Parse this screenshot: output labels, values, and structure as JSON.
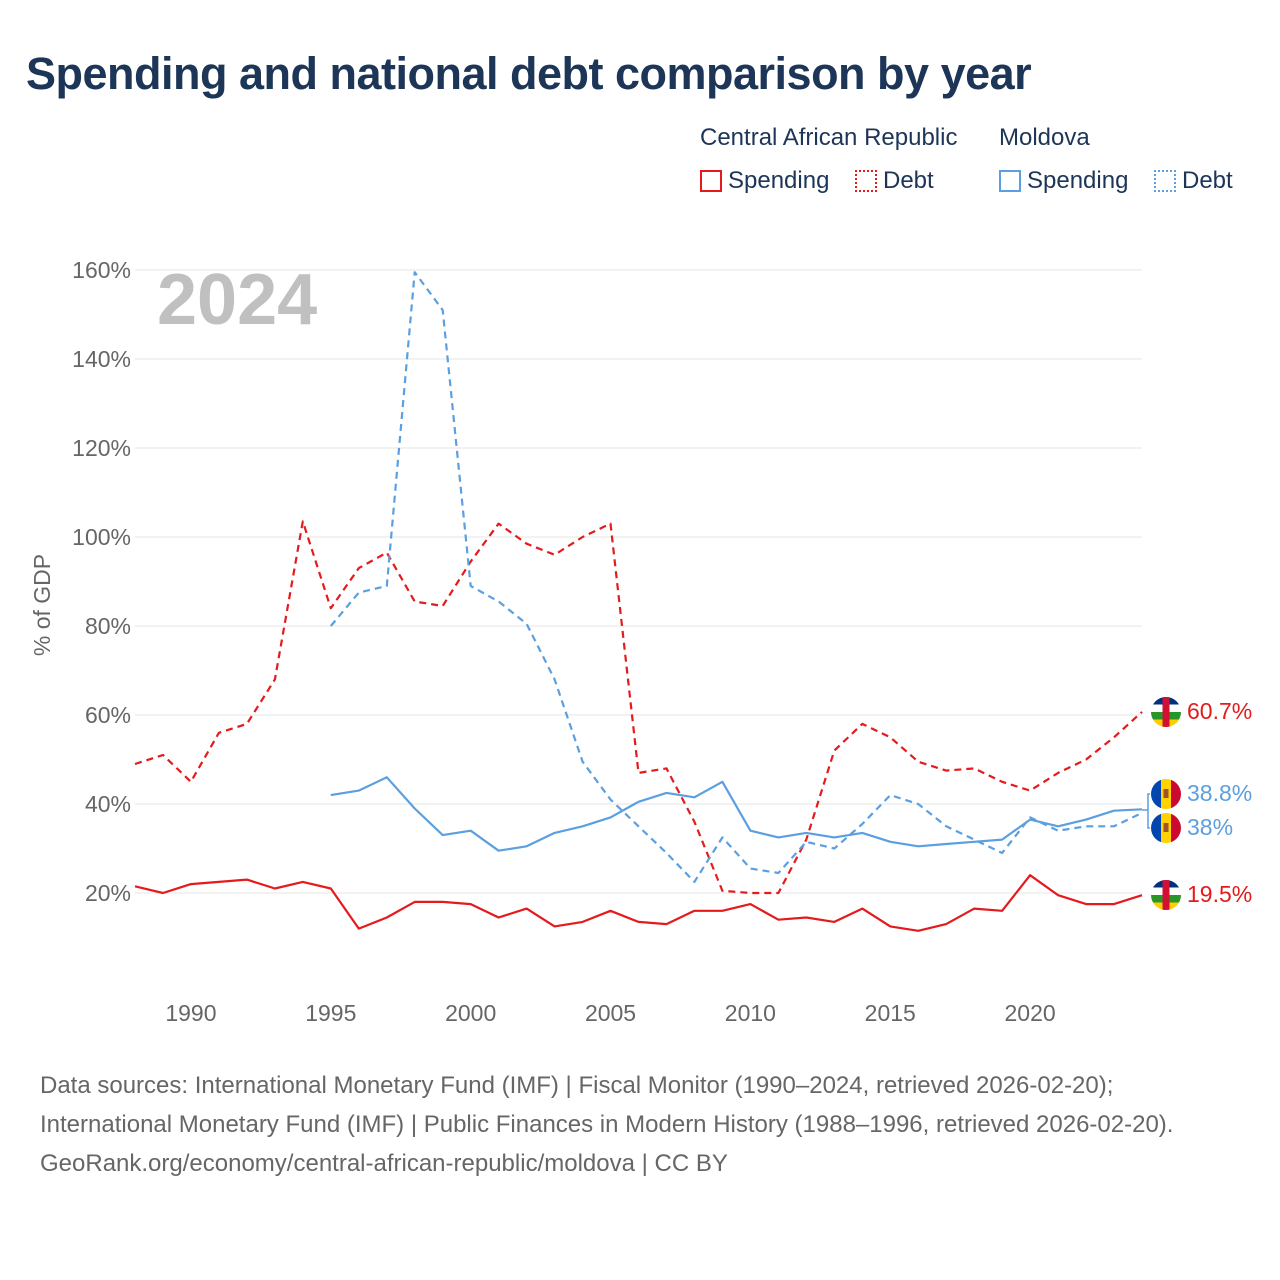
{
  "title": "Spending and national debt comparison by year",
  "legend": {
    "groups": [
      {
        "country": "Central African Republic",
        "color": "#e41a1c",
        "items": [
          "Spending",
          "Debt"
        ]
      },
      {
        "country": "Moldova",
        "color": "#5b9fe0",
        "items": [
          "Spending",
          "Debt"
        ]
      }
    ]
  },
  "footer": {
    "sources": "Data sources: International Monetary Fund (IMF) | Fiscal Monitor (1990–2024, retrieved 2026-02-20); International Monetary Fund (IMF) | Public Finances in Modern History (1988–1996, retrieved 2026-02-20).",
    "credit": "GeoRank.org/economy/central-african-republic/moldova | CC BY"
  },
  "chart_data": {
    "type": "line",
    "title": "Spending and national debt comparison by year",
    "ylabel": "% of GDP",
    "xlabel": "",
    "year_label": "2024",
    "xlim": [
      1988,
      2024
    ],
    "ylim": [
      0,
      160
    ],
    "x_ticks": [
      1990,
      1995,
      2000,
      2005,
      2010,
      2015,
      2020
    ],
    "y_ticks": [
      20,
      40,
      60,
      80,
      100,
      120,
      140,
      160
    ],
    "y_tick_labels": [
      "20%",
      "40%",
      "60%",
      "80%",
      "100%",
      "120%",
      "140%",
      "160%"
    ],
    "grid": true,
    "series": [
      {
        "name": "Central African Republic Debt",
        "country": "Central African Republic",
        "metric": "Debt",
        "color": "#e41a1c",
        "dashed": true,
        "end_label": "60.7%",
        "x": [
          1988,
          1989,
          1990,
          1991,
          1992,
          1993,
          1994,
          1995,
          1996,
          1997,
          1998,
          1999,
          2000,
          2001,
          2002,
          2003,
          2004,
          2005,
          2006,
          2007,
          2008,
          2009,
          2010,
          2011,
          2012,
          2013,
          2014,
          2015,
          2016,
          2017,
          2018,
          2019,
          2020,
          2021,
          2022,
          2023,
          2024
        ],
        "values": [
          49,
          51,
          45,
          56,
          58,
          68,
          103.5,
          84,
          93,
          96.5,
          85.5,
          84.5,
          94.5,
          103,
          98.5,
          96,
          100,
          103,
          47,
          48,
          36,
          20.5,
          20,
          20,
          32,
          52,
          58,
          55,
          49.5,
          47.5,
          48,
          45,
          43,
          47,
          50,
          55,
          60.7
        ]
      },
      {
        "name": "Central African Republic Spending",
        "country": "Central African Republic",
        "metric": "Spending",
        "color": "#e41a1c",
        "dashed": false,
        "end_label": "19.5%",
        "x": [
          1988,
          1989,
          1990,
          1991,
          1992,
          1993,
          1994,
          1995,
          1996,
          1997,
          1998,
          1999,
          2000,
          2001,
          2002,
          2003,
          2004,
          2005,
          2006,
          2007,
          2008,
          2009,
          2010,
          2011,
          2012,
          2013,
          2014,
          2015,
          2016,
          2017,
          2018,
          2019,
          2020,
          2021,
          2022,
          2023,
          2024
        ],
        "values": [
          21.5,
          20,
          22,
          22.5,
          23,
          21,
          22.5,
          21,
          12,
          14.5,
          18,
          18,
          17.5,
          14.5,
          16.5,
          12.5,
          13.5,
          16,
          13.5,
          13,
          16,
          16,
          17.5,
          14,
          14.5,
          13.5,
          16.5,
          12.5,
          11.5,
          13,
          16.5,
          16,
          24,
          19.5,
          17.5,
          17.5,
          19.5
        ]
      },
      {
        "name": "Moldova Debt",
        "country": "Moldova",
        "metric": "Debt",
        "color": "#5b9fe0",
        "dashed": true,
        "end_label": "38%",
        "x": [
          1995,
          1996,
          1997,
          1998,
          1999,
          2000,
          2001,
          2002,
          2003,
          2004,
          2005,
          2006,
          2007,
          2008,
          2009,
          2010,
          2011,
          2012,
          2013,
          2014,
          2015,
          2016,
          2017,
          2018,
          2019,
          2020,
          2021,
          2022,
          2023,
          2024
        ],
        "values": [
          80,
          87.5,
          89,
          159.5,
          151,
          89,
          85.5,
          80.5,
          68,
          49.5,
          41,
          35,
          29,
          22.5,
          32.5,
          25.5,
          24.5,
          31.5,
          30,
          35.5,
          42,
          40,
          35,
          32,
          29,
          37,
          34,
          35,
          35,
          38
        ]
      },
      {
        "name": "Moldova Spending",
        "country": "Moldova",
        "metric": "Spending",
        "color": "#5b9fe0",
        "dashed": false,
        "end_label": "38.8%",
        "x": [
          1995,
          1996,
          1997,
          1998,
          1999,
          2000,
          2001,
          2002,
          2003,
          2004,
          2005,
          2006,
          2007,
          2008,
          2009,
          2010,
          2011,
          2012,
          2013,
          2014,
          2015,
          2016,
          2017,
          2018,
          2019,
          2020,
          2021,
          2022,
          2023,
          2024
        ],
        "values": [
          42,
          43,
          46,
          39,
          33,
          34,
          29.5,
          30.5,
          33.5,
          35,
          37,
          40.5,
          42.5,
          41.5,
          45,
          34,
          32.5,
          33.5,
          32.5,
          33.5,
          31.5,
          30.5,
          31,
          31.5,
          32,
          36.5,
          35,
          36.5,
          38.5,
          38.8
        ]
      }
    ]
  }
}
